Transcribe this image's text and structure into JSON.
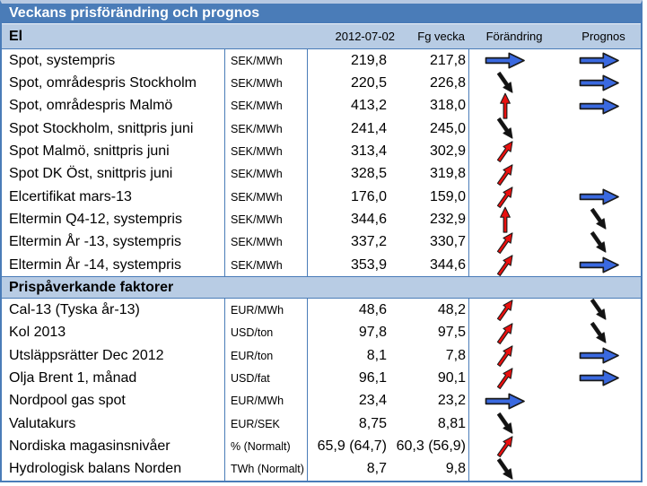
{
  "title": "Veckans prisförändring och prognos",
  "columns": {
    "date": "2012-07-02",
    "prev": "Fg vecka",
    "change": "Förändring",
    "forecast": "Prognos"
  },
  "colors": {
    "header_bar": "#4a7cb8",
    "section_bg": "#b8cce4",
    "border": "#4a7cb8",
    "arrow_blue": "#3a69e0",
    "arrow_red": "#e8100f",
    "arrow_black": "#121212",
    "arrow_outline": "#1a1a1a"
  },
  "arrow_icons": {
    "flat": "flat-right-arrow-icon",
    "up": "rising-arrow-icon",
    "strong_up": "strong-rise-arrow-icon",
    "down": "falling-arrow-icon"
  },
  "sections": [
    {
      "label": "El",
      "rows": [
        {
          "name": "Spot, systempris",
          "unit": "SEK/MWh",
          "current": "219,8",
          "previous": "217,8",
          "change": "flat",
          "forecast": "flat"
        },
        {
          "name": "Spot, områdespris Stockholm",
          "unit": "SEK/MWh",
          "current": "220,5",
          "previous": "226,8",
          "change": "down",
          "forecast": "flat"
        },
        {
          "name": "Spot, områdespris Malmö",
          "unit": "SEK/MWh",
          "current": "413,2",
          "previous": "318,0",
          "change": "strong_up",
          "forecast": "flat"
        },
        {
          "name": "Spot Stockholm, snittpris juni",
          "unit": "SEK/MWh",
          "current": "241,4",
          "previous": "245,0",
          "change": "down",
          "forecast": ""
        },
        {
          "name": "Spot Malmö, snittpris juni",
          "unit": "SEK/MWh",
          "current": "313,4",
          "previous": "302,9",
          "change": "up",
          "forecast": ""
        },
        {
          "name": "Spot DK Öst, snittpris juni",
          "unit": "SEK/MWh",
          "current": "328,5",
          "previous": "319,8",
          "change": "up",
          "forecast": ""
        },
        {
          "name": "Elcertifikat mars-13",
          "unit": "SEK/MWh",
          "current": "176,0",
          "previous": "159,0",
          "change": "up",
          "forecast": "flat"
        },
        {
          "name": "Eltermin Q4-12, systempris",
          "unit": "SEK/MWh",
          "current": "344,6",
          "previous": "232,9",
          "change": "strong_up",
          "forecast": "down"
        },
        {
          "name": "Eltermin År -13, systempris",
          "unit": "SEK/MWh",
          "current": "337,2",
          "previous": "330,7",
          "change": "up",
          "forecast": "down"
        },
        {
          "name": "Eltermin År -14, systempris",
          "unit": "SEK/MWh",
          "current": "353,9",
          "previous": "344,6",
          "change": "up",
          "forecast": "flat"
        }
      ]
    },
    {
      "label": "Prispåverkande faktorer",
      "rows": [
        {
          "name": "Cal-13 (Tyska år-13)",
          "unit": "EUR/MWh",
          "current": "48,6",
          "previous": "48,2",
          "change": "up",
          "forecast": "down"
        },
        {
          "name": "Kol 2013",
          "unit": "USD/ton",
          "current": "97,8",
          "previous": "97,5",
          "change": "up",
          "forecast": "down"
        },
        {
          "name": "Utsläppsrätter Dec 2012",
          "unit": "EUR/ton",
          "current": "8,1",
          "previous": "7,8",
          "change": "up",
          "forecast": "flat"
        },
        {
          "name": "Olja Brent 1, månad",
          "unit": "USD/fat",
          "current": "96,1",
          "previous": "90,1",
          "change": "up",
          "forecast": "flat"
        },
        {
          "name": "Nordpool gas spot",
          "unit": "EUR/MWh",
          "current": "23,4",
          "previous": "23,2",
          "change": "flat",
          "forecast": ""
        },
        {
          "name": "Valutakurs",
          "unit": "EUR/SEK",
          "current": "8,75",
          "previous": "8,81",
          "change": "down",
          "forecast": ""
        },
        {
          "name": "Nordiska magasinsnivåer",
          "unit": "% (Normalt)",
          "current": "65,9 (64,7)",
          "previous": "60,3 (56,9)",
          "change": "up",
          "forecast": ""
        },
        {
          "name": "Hydrologisk balans Norden",
          "unit": "TWh (Normalt)",
          "current": "8,7",
          "previous": "9,8",
          "change": "down",
          "forecast": ""
        }
      ]
    }
  ]
}
